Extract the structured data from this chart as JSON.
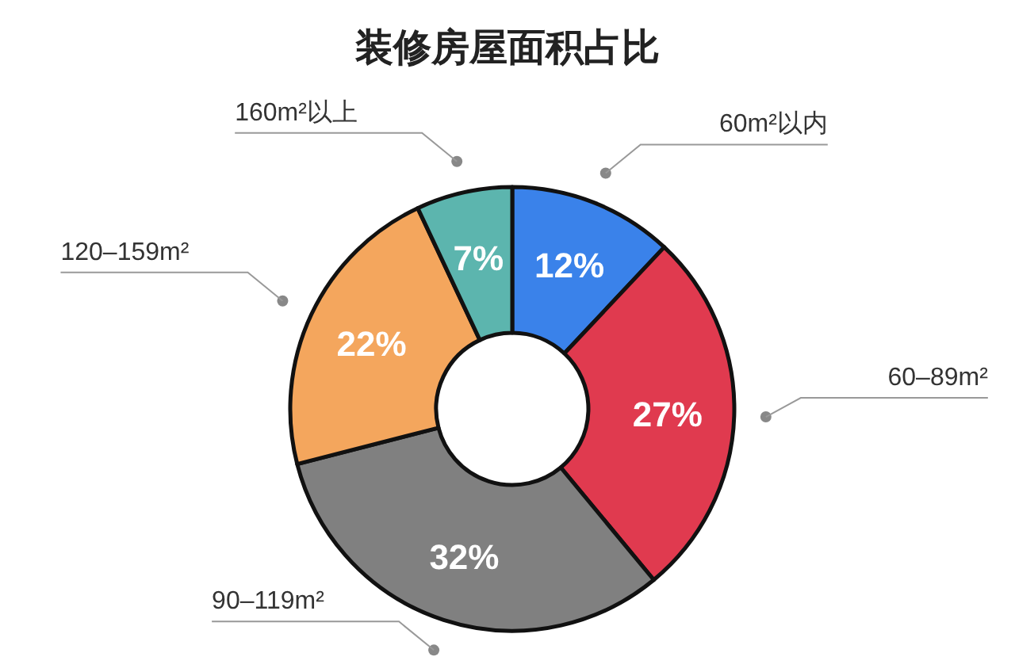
{
  "chart_data": {
    "type": "donut",
    "title": "装修房屋面积占比",
    "categories": [
      "60m²以内",
      "60–89m²",
      "90–119m²",
      "120–159m²",
      "160m²以上"
    ],
    "values": [
      12,
      27,
      32,
      22,
      7
    ],
    "colors": [
      "#3a82ea",
      "#e03a4f",
      "#808080",
      "#f4a65d",
      "#5cb5ae"
    ],
    "value_labels": [
      "12%",
      "27%",
      "32%",
      "22%",
      "7%"
    ]
  }
}
